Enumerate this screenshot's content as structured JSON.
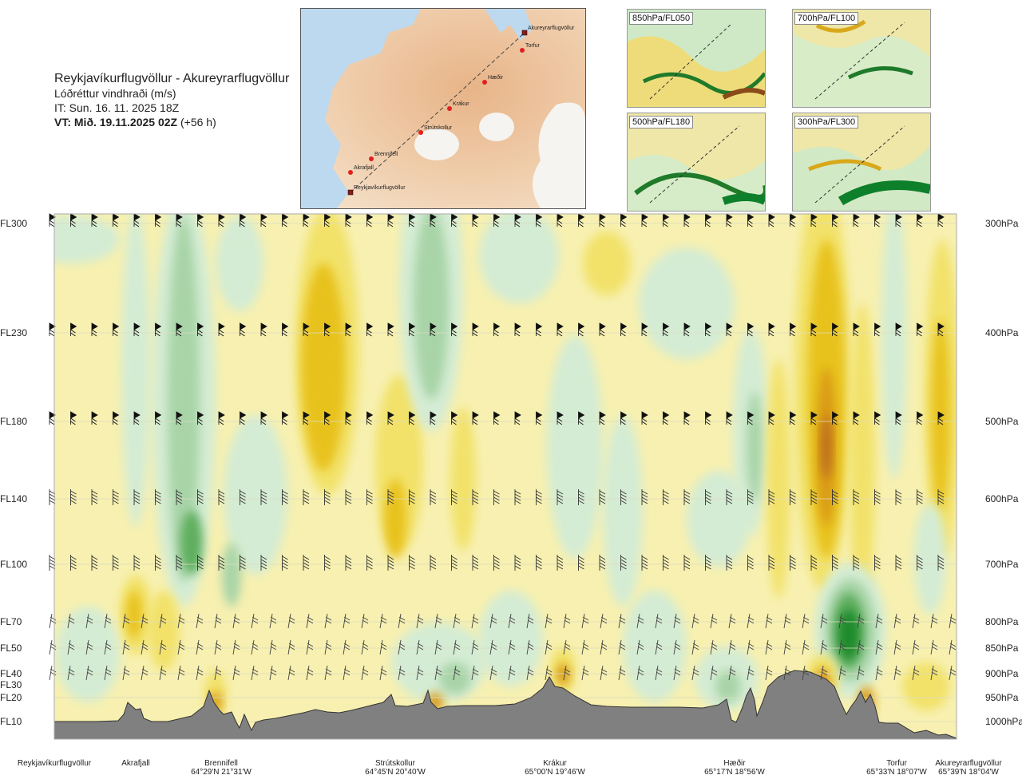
{
  "header": {
    "title": "Reykjavíkurflugvöllur - Akureyrarflugvöllur",
    "subtitle": "Lóðréttur vindhraði (m/s)",
    "init_time": "IT: Sun. 16. 11. 2025 18Z",
    "valid_bold": "VT: Mið. 19.11.2025 02Z",
    "valid_rest": " (+56 h)"
  },
  "map": {
    "stations": [
      {
        "name": "Akureyrarflugvöllur"
      },
      {
        "name": "Torfur"
      },
      {
        "name": "Hæðir"
      },
      {
        "name": "Krákur"
      },
      {
        "name": "Strútskollur"
      },
      {
        "name": "Brennifell"
      },
      {
        "name": "Akrafjall"
      },
      {
        "name": "Reykjavíkurflugvöllur"
      }
    ]
  },
  "mini_maps": [
    {
      "label": "850hPa/FL050"
    },
    {
      "label": "700hPa/FL100"
    },
    {
      "label": "500hPa/FL180"
    },
    {
      "label": "300hPa/FL300"
    }
  ],
  "chart_data": {
    "type": "heatmap",
    "title": "Lóðréttur vindhraði (m/s)",
    "left_axis": [
      {
        "label": "FL300",
        "hpa": 300
      },
      {
        "label": "FL230",
        "hpa": 400
      },
      {
        "label": "FL180",
        "hpa": 500
      },
      {
        "label": "FL140",
        "hpa": 600
      },
      {
        "label": "FL100",
        "hpa": 700
      },
      {
        "label": "FL70",
        "hpa": 800
      },
      {
        "label": "FL50",
        "hpa": 850
      },
      {
        "label": "FL40",
        "hpa": 900
      },
      {
        "label": "FL30",
        "hpa": 925
      },
      {
        "label": "FL20",
        "hpa": 950
      },
      {
        "label": "FL10",
        "hpa": 1000
      }
    ],
    "right_axis": [
      {
        "label": "300hPa",
        "hpa": 300
      },
      {
        "label": "400hPa",
        "hpa": 400
      },
      {
        "label": "500hPa",
        "hpa": 500
      },
      {
        "label": "600hPa",
        "hpa": 600
      },
      {
        "label": "700hPa",
        "hpa": 700
      },
      {
        "label": "800hPa",
        "hpa": 800
      },
      {
        "label": "850hPa",
        "hpa": 850
      },
      {
        "label": "900hPa",
        "hpa": 900
      },
      {
        "label": "950hPa",
        "hpa": 950
      },
      {
        "label": "1000hPa",
        "hpa": 1000
      }
    ],
    "barb_levels_hpa": [
      300,
      400,
      500,
      600,
      700,
      800,
      850,
      900
    ],
    "bottom_labels": [
      {
        "name": "Reykjavíkurflugvöllur",
        "coord": ""
      },
      {
        "name": "Akrafjall",
        "coord": ""
      },
      {
        "name": "Brennifell",
        "coord": "64°29'N 21°31'W"
      },
      {
        "name": "Strútskollur",
        "coord": "64°45'N 20°40'W"
      },
      {
        "name": "Krákur",
        "coord": "65°00'N 19°46'W"
      },
      {
        "name": "Hæðir",
        "coord": "65°17'N 18°56'W"
      },
      {
        "name": "Torfur",
        "coord": "65°33'N 18°07'W"
      },
      {
        "name": "Akureyrarflugvöllur",
        "coord": "65°39'N 18°04'W"
      }
    ],
    "colors": {
      "neutral": "#f7f0b0",
      "up_weak": "#f2e26a",
      "up_mod": "#e8c21e",
      "up_strong": "#d99a18",
      "up_vstrong": "#b8681a",
      "down_weak": "#d4ecd4",
      "down_mod": "#a8d4a8",
      "down_strong": "#5fae5f",
      "down_vstrong": "#1a8a2a",
      "terrain": "#808080"
    }
  }
}
